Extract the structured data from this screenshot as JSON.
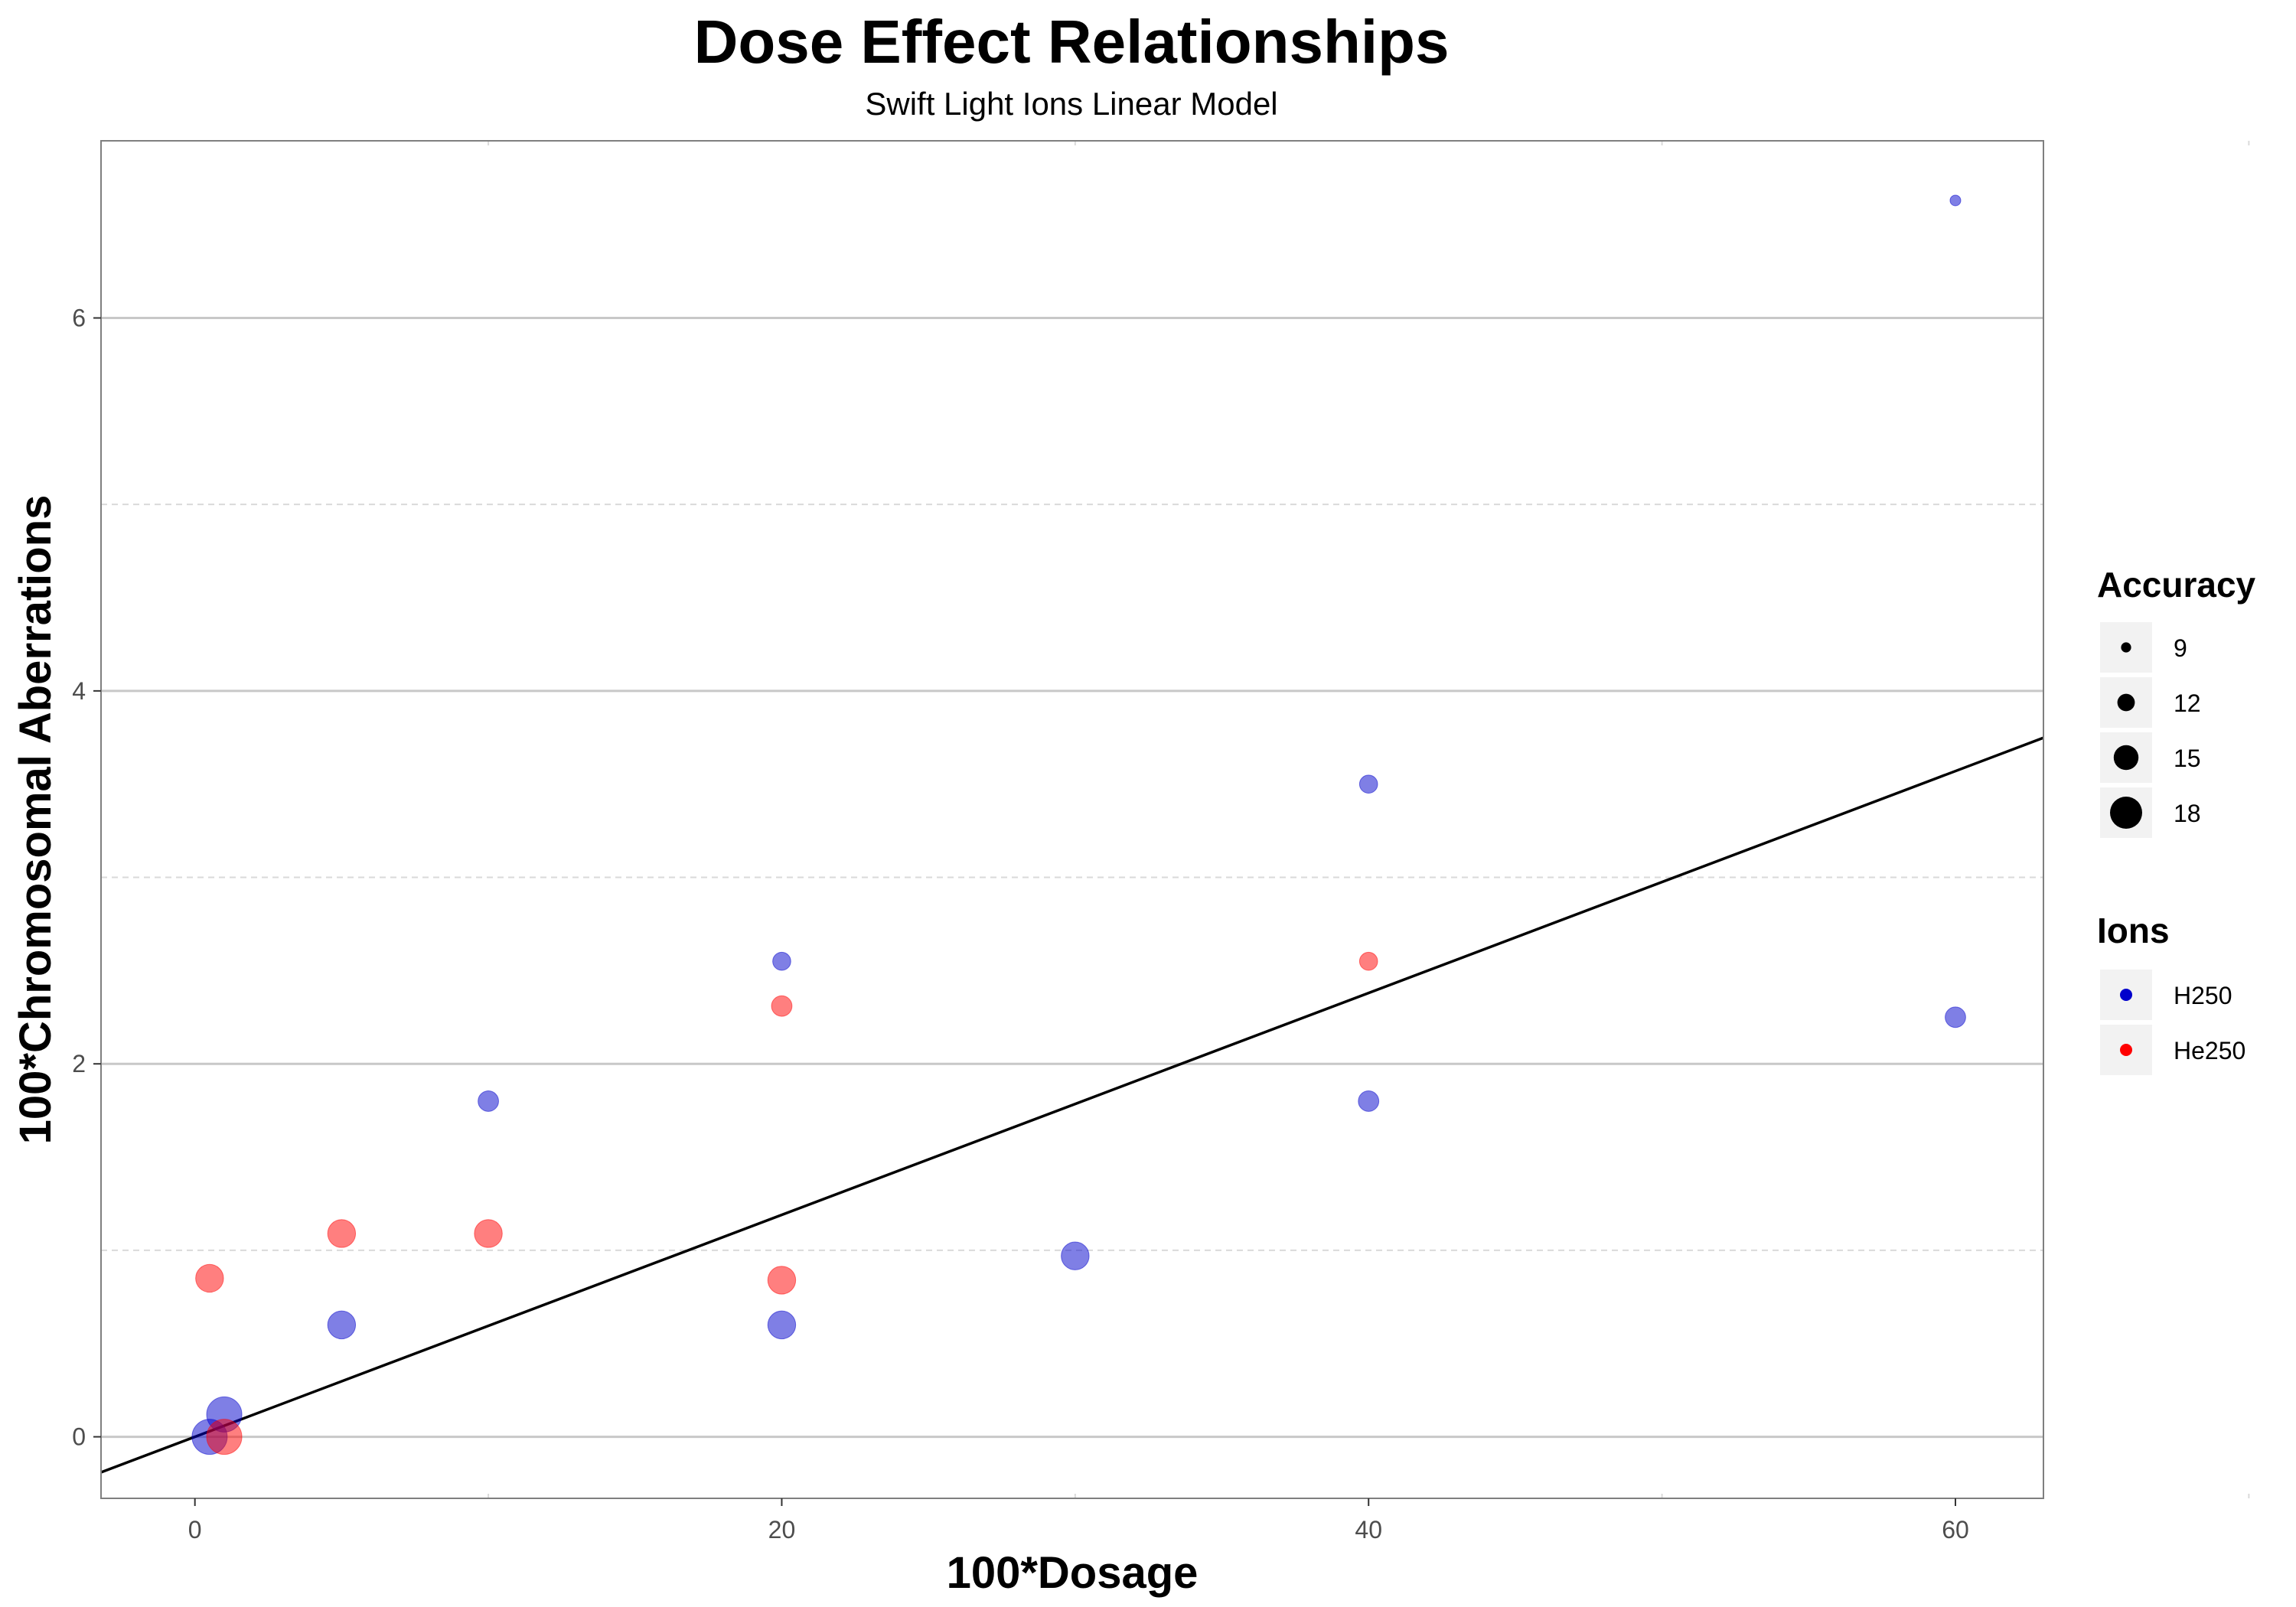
{
  "chart_data": {
    "type": "scatter",
    "title": "Dose Effect Relationships",
    "subtitle": "Swift Light Ions Linear Model",
    "xlabel": "100*Dosage",
    "ylabel": "100*Chromosomal Aberrations",
    "xlim": [
      -3.2,
      63
    ],
    "ylim": [
      -0.33,
      6.95
    ],
    "x_ticks": [
      0,
      20,
      40,
      60
    ],
    "y_ticks": [
      0,
      2,
      4,
      6
    ],
    "grid": true,
    "fit_line": {
      "slope": 0.0595,
      "intercept": 0.0,
      "color": "#000000"
    },
    "legends": {
      "accuracy": {
        "title": "Accuracy",
        "entries": [
          {
            "label": "9",
            "value": 9
          },
          {
            "label": "12",
            "value": 12
          },
          {
            "label": "15",
            "value": 15
          },
          {
            "label": "18",
            "value": 18
          }
        ]
      },
      "ions": {
        "title": "Ions",
        "entries": [
          {
            "label": "H250",
            "color": "#0000cc"
          },
          {
            "label": "He250",
            "color": "#ff0000"
          }
        ]
      }
    },
    "series": [
      {
        "name": "H250",
        "color": "#0000cc",
        "points": [
          {
            "x": 0.5,
            "y": 0.0,
            "accuracy": 18
          },
          {
            "x": 1,
            "y": 0.12,
            "accuracy": 18
          },
          {
            "x": 5,
            "y": 0.6,
            "accuracy": 15
          },
          {
            "x": 10,
            "y": 1.8,
            "accuracy": 12
          },
          {
            "x": 20,
            "y": 2.55,
            "accuracy": 11
          },
          {
            "x": 20,
            "y": 0.6,
            "accuracy": 15
          },
          {
            "x": 30,
            "y": 0.97,
            "accuracy": 15
          },
          {
            "x": 40,
            "y": 3.5,
            "accuracy": 11
          },
          {
            "x": 40,
            "y": 1.8,
            "accuracy": 12
          },
          {
            "x": 60,
            "y": 6.63,
            "accuracy": 8
          },
          {
            "x": 60,
            "y": 2.25,
            "accuracy": 12
          }
        ]
      },
      {
        "name": "He250",
        "color": "#ff0000",
        "points": [
          {
            "x": 0.5,
            "y": 0.85,
            "accuracy": 15
          },
          {
            "x": 1,
            "y": 0.0,
            "accuracy": 18
          },
          {
            "x": 5,
            "y": 1.09,
            "accuracy": 15
          },
          {
            "x": 10,
            "y": 1.09,
            "accuracy": 15
          },
          {
            "x": 20,
            "y": 2.31,
            "accuracy": 12
          },
          {
            "x": 20,
            "y": 0.84,
            "accuracy": 15
          },
          {
            "x": 40,
            "y": 2.55,
            "accuracy": 11
          }
        ]
      }
    ]
  }
}
